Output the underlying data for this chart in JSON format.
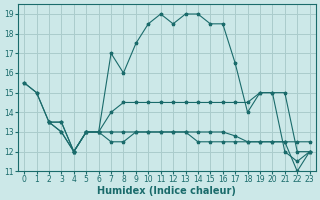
{
  "bg_color": "#cce8e8",
  "grid_color": "#aacccc",
  "line_color": "#1a6b6b",
  "marker": "*",
  "xlabel": "Humidex (Indice chaleur)",
  "xlim": [
    -0.5,
    23.5
  ],
  "ylim": [
    11,
    19.5
  ],
  "yticks": [
    11,
    12,
    13,
    14,
    15,
    16,
    17,
    18,
    19
  ],
  "xticks": [
    0,
    1,
    2,
    3,
    4,
    5,
    6,
    7,
    8,
    9,
    10,
    11,
    12,
    13,
    14,
    15,
    16,
    17,
    18,
    19,
    20,
    21,
    22,
    23
  ],
  "series_data": {
    "line1_x": [
      0,
      1,
      2,
      3,
      4,
      5,
      6,
      7,
      8,
      9,
      10,
      11,
      12,
      13,
      14,
      15,
      16,
      17,
      18,
      19,
      20,
      21,
      22,
      23
    ],
    "line1_y": [
      15.5,
      15.0,
      13.5,
      13.5,
      12.0,
      13.0,
      13.0,
      14.0,
      14.5,
      14.5,
      14.5,
      14.5,
      14.5,
      14.5,
      14.5,
      14.5,
      14.5,
      14.5,
      14.5,
      15.0,
      15.0,
      15.0,
      12.0,
      12.0
    ],
    "line2_x": [
      2,
      3,
      4,
      5,
      6,
      7,
      8,
      9,
      10,
      11,
      12,
      13,
      14,
      15,
      16,
      17,
      18,
      19,
      20,
      21,
      22,
      23
    ],
    "line2_y": [
      13.5,
      13.0,
      12.0,
      13.0,
      13.0,
      13.0,
      13.0,
      13.0,
      13.0,
      13.0,
      13.0,
      13.0,
      12.5,
      12.5,
      12.5,
      12.5,
      12.5,
      12.5,
      12.5,
      12.5,
      12.5,
      12.5
    ],
    "line3_x": [
      2,
      3,
      4,
      5,
      6,
      7,
      8,
      9,
      10,
      11,
      12,
      13,
      14,
      15,
      16,
      17,
      18,
      19,
      20,
      21,
      22,
      23
    ],
    "line3_y": [
      13.5,
      13.0,
      12.0,
      13.0,
      13.0,
      12.5,
      12.5,
      13.0,
      13.0,
      13.0,
      13.0,
      13.0,
      13.0,
      13.0,
      13.0,
      12.8,
      12.5,
      12.5,
      12.5,
      12.5,
      11.0,
      12.0
    ],
    "line4_x": [
      0,
      1,
      2,
      3,
      4,
      5,
      6,
      7,
      8,
      9,
      10,
      11,
      12,
      13,
      14,
      15,
      16,
      17,
      18,
      19,
      20,
      21,
      22,
      23
    ],
    "line4_y": [
      15.5,
      15.0,
      13.5,
      13.5,
      12.0,
      13.0,
      13.0,
      17.0,
      16.0,
      17.5,
      18.5,
      19.0,
      18.5,
      19.0,
      19.0,
      18.5,
      18.5,
      16.5,
      14.0,
      15.0,
      15.0,
      12.0,
      11.5,
      12.0
    ]
  }
}
